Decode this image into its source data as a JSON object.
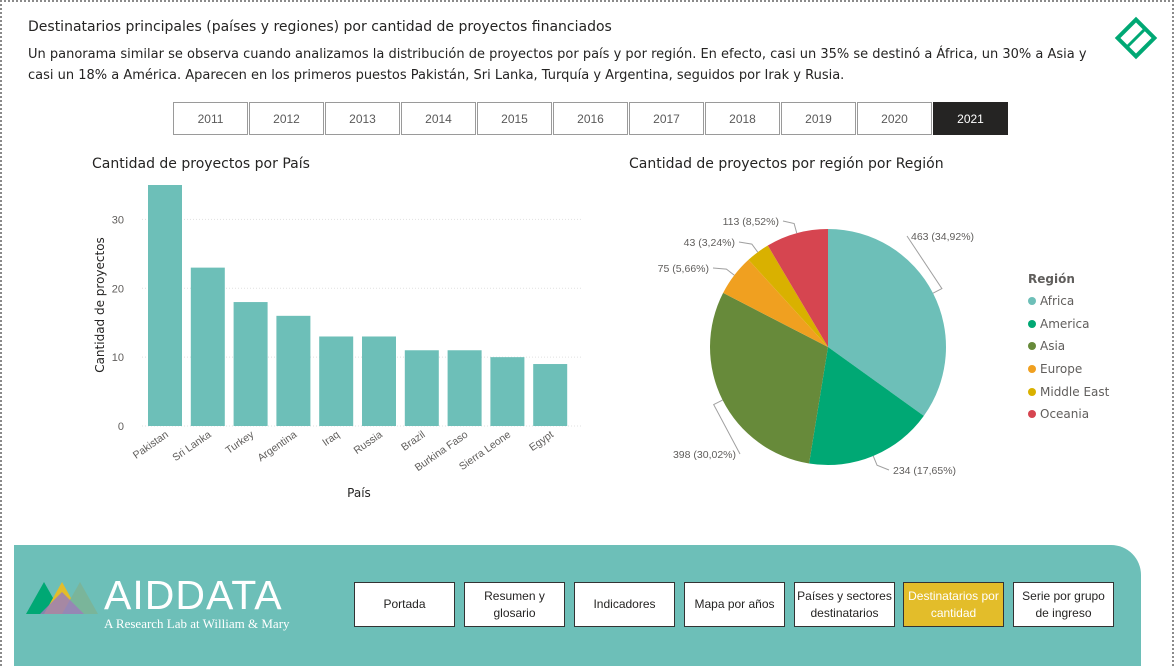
{
  "header": {
    "title": "Destinatarios principales (países y regiones) por cantidad de proyectos financiados",
    "description": "Un panorama similar se observa cuando analizamos la distribución de proyectos por país y por región. En efecto, casi un 35% se destinó a África, un 30% a Asia y casi un 18% a América. Aparecen en los primeros puestos Pakistán, Sri Lanka, Turquía y Argentina, seguidos por Irak y Rusia."
  },
  "years": {
    "items": [
      "2011",
      "2012",
      "2013",
      "2014",
      "2015",
      "2016",
      "2017",
      "2018",
      "2019",
      "2020",
      "2021"
    ],
    "selected": "2021"
  },
  "icons": {
    "logo_diamond": "diamond-logo-icon",
    "logo_triangles": "aiddata-triangles-icon"
  },
  "colors": {
    "bar": "#6dbfb8",
    "footer": "#6dbfb8",
    "active_nav": "#e3bd2a",
    "active_year": "#252423"
  },
  "chart_data": [
    {
      "type": "bar",
      "title": "Cantidad de proyectos por País",
      "xlabel": "País",
      "ylabel": "Cantidad de proyectos",
      "categories": [
        "Pakistan",
        "Sri Lanka",
        "Turkey",
        "Argentina",
        "Iraq",
        "Russia",
        "Brazil",
        "Burkina Faso",
        "Sierra Leone",
        "Egypt"
      ],
      "values": [
        35,
        23,
        18,
        16,
        13,
        13,
        11,
        11,
        10,
        9
      ],
      "yticks": [
        0,
        10,
        20,
        30
      ],
      "ylim": [
        0,
        35
      ],
      "grid": true
    },
    {
      "type": "pie",
      "title": "Cantidad de proyectos por región por Región",
      "legend_title": "Región",
      "legend_position": "right",
      "slices": [
        {
          "name": "Africa",
          "value": 463,
          "label": "463 (34,92%)",
          "color": "#6dbfb8"
        },
        {
          "name": "America",
          "value": 234,
          "label": "234 (17,65%)",
          "color": "#00a874"
        },
        {
          "name": "Asia",
          "value": 398,
          "label": "398 (30,02%)",
          "color": "#678a3a"
        },
        {
          "name": "Europe",
          "value": 75,
          "label": "75 (5,66%)",
          "color": "#f0a020"
        },
        {
          "name": "Middle East",
          "value": 43,
          "label": "43 (3,24%)",
          "color": "#d9b100"
        },
        {
          "name": "Oceania",
          "value": 113,
          "label": "113 (8,52%)",
          "color": "#d64550"
        }
      ]
    }
  ],
  "footer": {
    "brand_name": "AIDDATA",
    "brand_subtitle": "A Research Lab at William & Mary",
    "nav": [
      {
        "label": "Portada",
        "active": false
      },
      {
        "label": "Resumen y glosario",
        "active": false
      },
      {
        "label": "Indicadores",
        "active": false
      },
      {
        "label": "Mapa por años",
        "active": false
      },
      {
        "label": "Países y sectores destinatarios",
        "active": false
      },
      {
        "label": "Destinatarios por cantidad",
        "active": true
      },
      {
        "label": "Serie por grupo de ingreso",
        "active": false
      }
    ]
  }
}
